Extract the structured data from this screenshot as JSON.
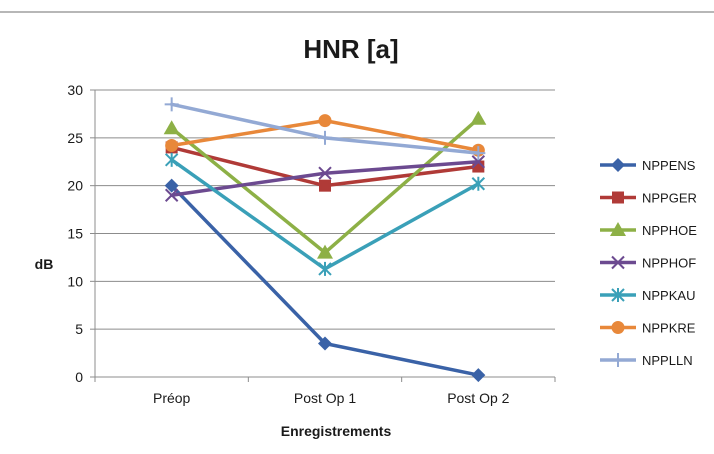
{
  "chart_data": {
    "type": "line",
    "title": "HNR [a]",
    "xlabel": "Enregistrements",
    "ylabel": "dB",
    "categories": [
      "Préop",
      "Post Op 1",
      "Post Op 2"
    ],
    "ylim": [
      0,
      30
    ],
    "yticks": [
      "0",
      "5",
      "10",
      "15",
      "20",
      "25",
      "30"
    ],
    "grid": true,
    "legend_position": "right",
    "series": [
      {
        "name": "NPPENS",
        "values": [
          20,
          3.5,
          0.2
        ],
        "color": "#3a62a7",
        "marker": "diamond"
      },
      {
        "name": "NPPGER",
        "values": [
          24,
          20,
          22
        ],
        "color": "#b03a37",
        "marker": "square"
      },
      {
        "name": "NPPHOE",
        "values": [
          26,
          13,
          27
        ],
        "color": "#8db046",
        "marker": "triangle"
      },
      {
        "name": "NPPHOF",
        "values": [
          19,
          21.3,
          22.5
        ],
        "color": "#6c4a90",
        "marker": "x"
      },
      {
        "name": "NPPKAU",
        "values": [
          22.7,
          11.3,
          20.2
        ],
        "color": "#3aa0b8",
        "marker": "star"
      },
      {
        "name": "NPPKRE",
        "values": [
          24.2,
          26.8,
          23.7
        ],
        "color": "#e8883a",
        "marker": "circle"
      },
      {
        "name": "NPPLLN",
        "values": [
          28.5,
          25,
          23.4
        ],
        "color": "#93a9d4",
        "marker": "plus"
      }
    ]
  }
}
